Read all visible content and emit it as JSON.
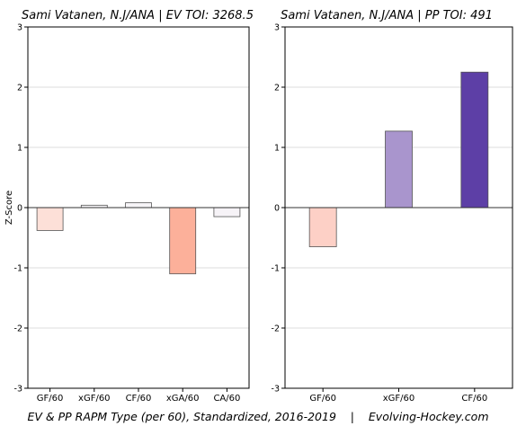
{
  "footer": "EV & PP RAPM Type (per 60), Standardized, 2016-2019    |    Evolving-Hockey.com",
  "chart_data": [
    {
      "type": "bar",
      "title": "Sami Vatanen, N.J/ANA  |  EV TOI: 3268.5",
      "ylabel": "Z-Score",
      "xlabel": "",
      "ylim": [
        -3,
        3
      ],
      "yticks": [
        -3,
        -2,
        -1,
        0,
        1,
        2,
        3
      ],
      "grid": true,
      "categories": [
        "GF/60",
        "xGF/60",
        "CF/60",
        "xGA/60",
        "CA/60"
      ],
      "values": [
        -0.38,
        0.04,
        0.08,
        -1.1,
        -0.15
      ],
      "colors": [
        "#fde0d8",
        "#f7f5f8",
        "#f7f5f8",
        "#fcb09a",
        "#f6f3f7"
      ]
    },
    {
      "type": "bar",
      "title": "Sami Vatanen, N.J/ANA  |  PP TOI: 491",
      "ylabel": "",
      "xlabel": "",
      "ylim": [
        -3,
        3
      ],
      "yticks": [
        -3,
        -2,
        -1,
        0,
        1,
        2,
        3
      ],
      "grid": true,
      "categories": [
        "GF/60",
        "xGF/60",
        "CF/60"
      ],
      "values": [
        -0.65,
        1.27,
        2.25
      ],
      "colors": [
        "#fdd0c6",
        "#a995cd",
        "#5d3fa6"
      ]
    }
  ]
}
